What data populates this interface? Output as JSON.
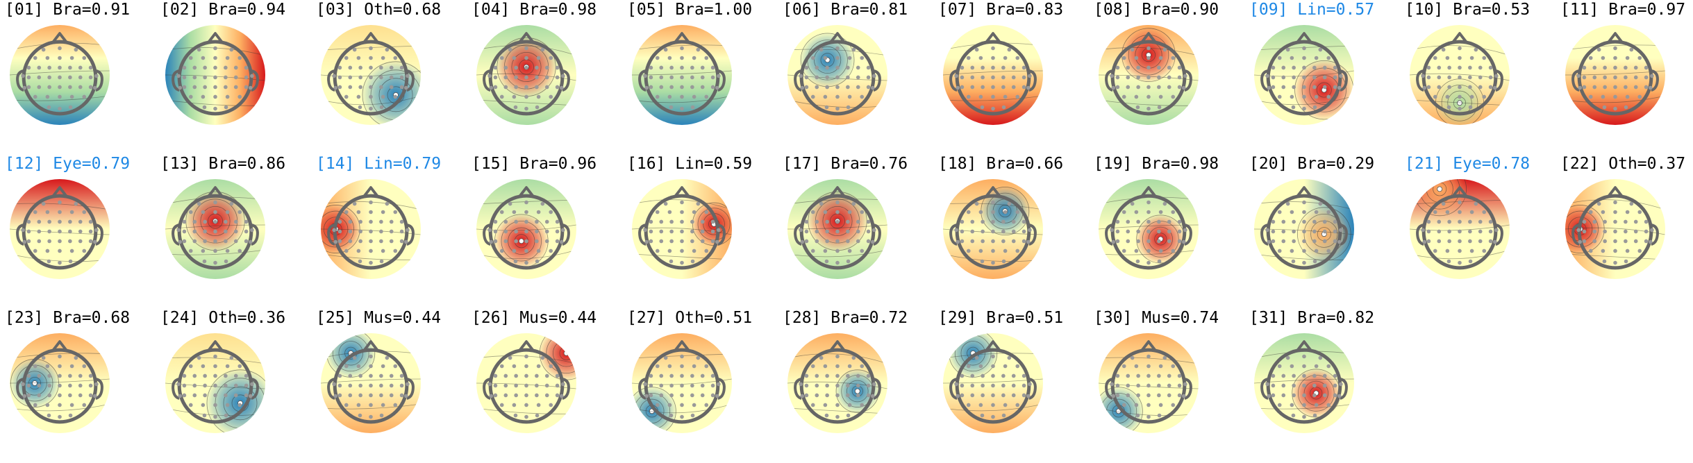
{
  "colors": {
    "label_default": "#000000",
    "label_highlight": "#1e88e5",
    "head_outline": "#666666",
    "electrode": "#999999",
    "contour": "#333333",
    "colormap": [
      "#2b83ba",
      "#abdda4",
      "#ffffbf",
      "#fdae61",
      "#d7191c"
    ]
  },
  "components": [
    {
      "id": "[01]",
      "label": "Bra",
      "score": "0.91",
      "highlight": false,
      "field": "anterior-warm-posterior-cool",
      "icon": "topomap-icon"
    },
    {
      "id": "[02]",
      "label": "Bra",
      "score": "0.94",
      "highlight": false,
      "field": "left-cool-right-warm",
      "icon": "topomap-icon"
    },
    {
      "id": "[03]",
      "label": "Oth",
      "score": "0.68",
      "highlight": false,
      "field": "right-posterior-cool",
      "icon": "topomap-icon"
    },
    {
      "id": "[04]",
      "label": "Bra",
      "score": "0.98",
      "highlight": false,
      "field": "central-warm",
      "icon": "topomap-icon"
    },
    {
      "id": "[05]",
      "label": "Bra",
      "score": "1.00",
      "highlight": false,
      "field": "anterior-warm-posterior-cool",
      "icon": "topomap-icon"
    },
    {
      "id": "[06]",
      "label": "Bra",
      "score": "0.81",
      "highlight": false,
      "field": "frontal-left-cool",
      "icon": "topomap-icon"
    },
    {
      "id": "[07]",
      "label": "Bra",
      "score": "0.83",
      "highlight": false,
      "field": "posterior-warm",
      "icon": "topomap-icon"
    },
    {
      "id": "[08]",
      "label": "Bra",
      "score": "0.90",
      "highlight": false,
      "field": "frontal-warm",
      "icon": "topomap-icon"
    },
    {
      "id": "[09]",
      "label": "Lin",
      "score": "0.57",
      "highlight": true,
      "field": "right-posterior-warm",
      "icon": "topomap-icon"
    },
    {
      "id": "[10]",
      "label": "Bra",
      "score": "0.53",
      "highlight": false,
      "field": "posterior-mixed",
      "icon": "topomap-icon"
    },
    {
      "id": "[11]",
      "label": "Bra",
      "score": "0.97",
      "highlight": false,
      "field": "posterior-warm",
      "icon": "topomap-icon"
    },
    {
      "id": "[12]",
      "label": "Eye",
      "score": "0.79",
      "highlight": true,
      "field": "frontal-pole-warm",
      "icon": "topomap-icon"
    },
    {
      "id": "[13]",
      "label": "Bra",
      "score": "0.86",
      "highlight": false,
      "field": "central-warm",
      "icon": "topomap-icon"
    },
    {
      "id": "[14]",
      "label": "Lin",
      "score": "0.79",
      "highlight": true,
      "field": "left-temporal-warm",
      "icon": "topomap-icon"
    },
    {
      "id": "[15]",
      "label": "Bra",
      "score": "0.96",
      "highlight": false,
      "field": "central-posterior-warm",
      "icon": "topomap-icon"
    },
    {
      "id": "[16]",
      "label": "Lin",
      "score": "0.59",
      "highlight": false,
      "field": "right-temporal-warm",
      "icon": "topomap-icon"
    },
    {
      "id": "[17]",
      "label": "Bra",
      "score": "0.76",
      "highlight": false,
      "field": "central-warm",
      "icon": "topomap-icon"
    },
    {
      "id": "[18]",
      "label": "Bra",
      "score": "0.66",
      "highlight": false,
      "field": "right-frontal-cool",
      "icon": "topomap-icon"
    },
    {
      "id": "[19]",
      "label": "Bra",
      "score": "0.98",
      "highlight": false,
      "field": "right-central-warm",
      "icon": "topomap-icon"
    },
    {
      "id": "[20]",
      "label": "Bra",
      "score": "0.29",
      "highlight": false,
      "field": "right-warm",
      "icon": "topomap-icon"
    },
    {
      "id": "[21]",
      "label": "Eye",
      "score": "0.78",
      "highlight": true,
      "field": "frontal-left-warm",
      "icon": "topomap-icon"
    },
    {
      "id": "[22]",
      "label": "Oth",
      "score": "0.37",
      "highlight": false,
      "field": "left-temporal-warm",
      "icon": "topomap-icon"
    },
    {
      "id": "[23]",
      "label": "Bra",
      "score": "0.68",
      "highlight": false,
      "field": "left-central-cool",
      "icon": "topomap-icon"
    },
    {
      "id": "[24]",
      "label": "Oth",
      "score": "0.36",
      "highlight": false,
      "field": "right-posterior-cool",
      "icon": "topomap-icon"
    },
    {
      "id": "[25]",
      "label": "Mus",
      "score": "0.44",
      "highlight": false,
      "field": "left-frontal-cool",
      "icon": "topomap-icon"
    },
    {
      "id": "[26]",
      "label": "Mus",
      "score": "0.44",
      "highlight": false,
      "field": "right-frontal-warm",
      "icon": "topomap-icon"
    },
    {
      "id": "[27]",
      "label": "Oth",
      "score": "0.51",
      "highlight": false,
      "field": "left-posterior-cool",
      "icon": "topomap-icon"
    },
    {
      "id": "[28]",
      "label": "Bra",
      "score": "0.72",
      "highlight": false,
      "field": "right-central-cool",
      "icon": "topomap-icon"
    },
    {
      "id": "[29]",
      "label": "Bra",
      "score": "0.51",
      "highlight": false,
      "field": "left-frontal-cool",
      "icon": "topomap-icon"
    },
    {
      "id": "[30]",
      "label": "Mus",
      "score": "0.74",
      "highlight": false,
      "field": "left-posterior-cool",
      "icon": "topomap-icon"
    },
    {
      "id": "[31]",
      "label": "Bra",
      "score": "0.82",
      "highlight": false,
      "field": "right-central-warm",
      "icon": "topomap-icon"
    }
  ]
}
